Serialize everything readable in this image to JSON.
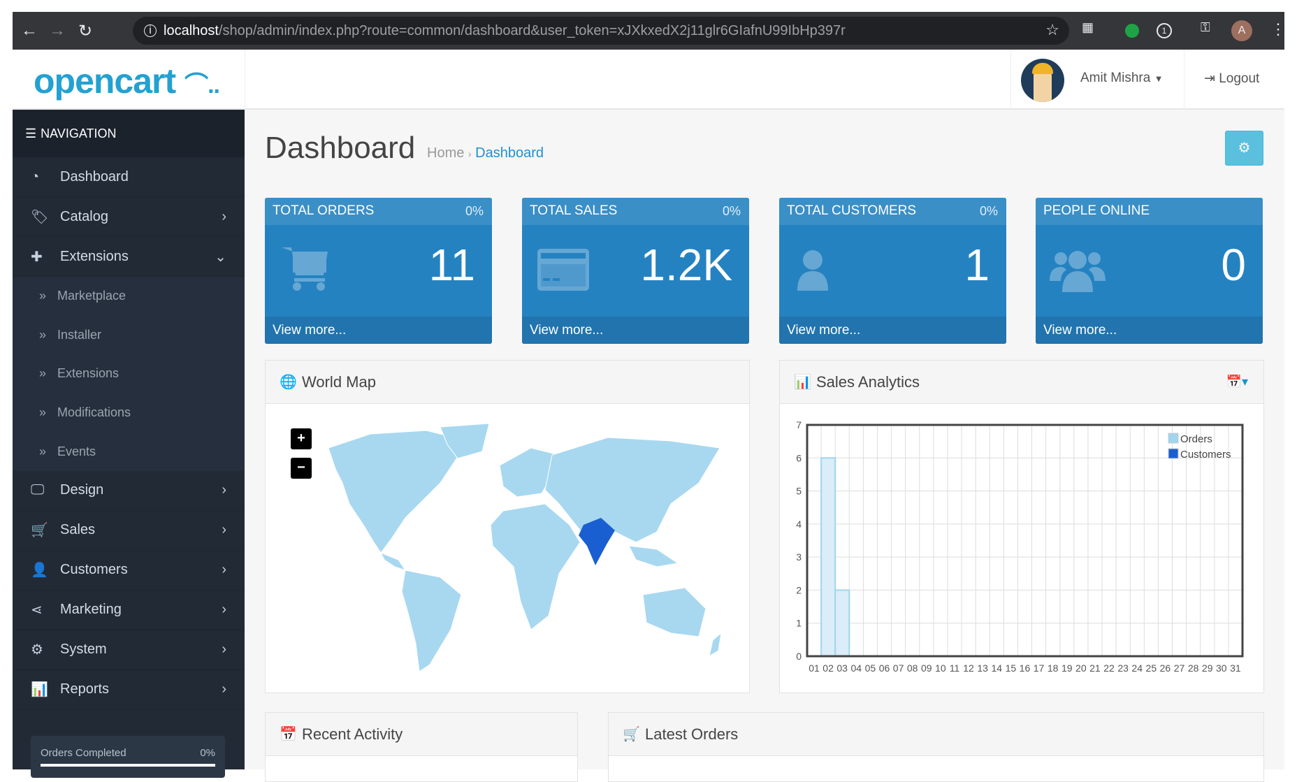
{
  "browser": {
    "url_host": "localhost",
    "url_path": "/shop/admin/index.php?route=common/dashboard&user_token=xJXkxedX2j11glr6GIafnU99IbHp397r",
    "profile_initial": "A",
    "ext_badge": "1"
  },
  "header": {
    "logo": "opencart",
    "user_name": "Amit Mishra",
    "logout": "Logout"
  },
  "sidebar": {
    "title": "NAVIGATION",
    "items": [
      {
        "label": "Dashboard"
      },
      {
        "label": "Catalog"
      },
      {
        "label": "Extensions"
      },
      {
        "label": "Design"
      },
      {
        "label": "Sales"
      },
      {
        "label": "Customers"
      },
      {
        "label": "Marketing"
      },
      {
        "label": "System"
      },
      {
        "label": "Reports"
      }
    ],
    "sub_items": [
      {
        "label": "Marketplace"
      },
      {
        "label": "Installer"
      },
      {
        "label": "Extensions"
      },
      {
        "label": "Modifications"
      },
      {
        "label": "Events"
      }
    ],
    "progress": {
      "label": "Orders Completed",
      "percent_text": "0%",
      "value": 0
    }
  },
  "page": {
    "title": "Dashboard",
    "breadcrumb": [
      "Home",
      "Dashboard"
    ]
  },
  "tiles": [
    {
      "title": "TOTAL ORDERS",
      "percent": "0%",
      "value": "11",
      "link": "View more..."
    },
    {
      "title": "TOTAL SALES",
      "percent": "0%",
      "value": "1.2K",
      "link": "View more..."
    },
    {
      "title": "TOTAL CUSTOMERS",
      "percent": "0%",
      "value": "1",
      "link": "View more..."
    },
    {
      "title": "PEOPLE ONLINE",
      "value": "0",
      "link": "View more..."
    }
  ],
  "panels": {
    "world_map": "World Map",
    "sales_analytics": "Sales Analytics",
    "recent_activity": "Recent Activity",
    "latest_orders": "Latest Orders",
    "zoom_in": "+",
    "zoom_out": "−"
  },
  "colors": {
    "accent": "#1e91cf",
    "tile": "#2582c1",
    "map_land": "#a8d8f0",
    "map_highlight": "#1a5fd1"
  },
  "chart_data": {
    "type": "bar",
    "x": [
      "01",
      "02",
      "03",
      "04",
      "05",
      "06",
      "07",
      "08",
      "09",
      "10",
      "11",
      "12",
      "13",
      "14",
      "15",
      "16",
      "17",
      "18",
      "19",
      "20",
      "21",
      "22",
      "23",
      "24",
      "25",
      "26",
      "27",
      "28",
      "29",
      "30",
      "31"
    ],
    "series": [
      {
        "name": "Orders",
        "color": "#9fd5f0",
        "values": [
          0,
          6,
          2,
          0,
          0,
          0,
          0,
          0,
          0,
          0,
          0,
          0,
          0,
          0,
          0,
          0,
          0,
          0,
          0,
          0,
          0,
          0,
          0,
          0,
          0,
          0,
          0,
          0,
          0,
          0,
          0
        ]
      },
      {
        "name": "Customers",
        "color": "#1a5fd1",
        "values": [
          0,
          0,
          0,
          0,
          0,
          0,
          0,
          0,
          0,
          0,
          0,
          0,
          0,
          0,
          0,
          0,
          0,
          0,
          0,
          0,
          0,
          0,
          0,
          0,
          0,
          0,
          0,
          0,
          0,
          0,
          0
        ]
      }
    ],
    "yticks": [
      "0",
      "1",
      "2",
      "3",
      "4",
      "5",
      "6",
      "7"
    ],
    "ylim": [
      0,
      7
    ],
    "xlim": [
      1,
      32
    ],
    "grid": true,
    "legend": "top-right"
  }
}
